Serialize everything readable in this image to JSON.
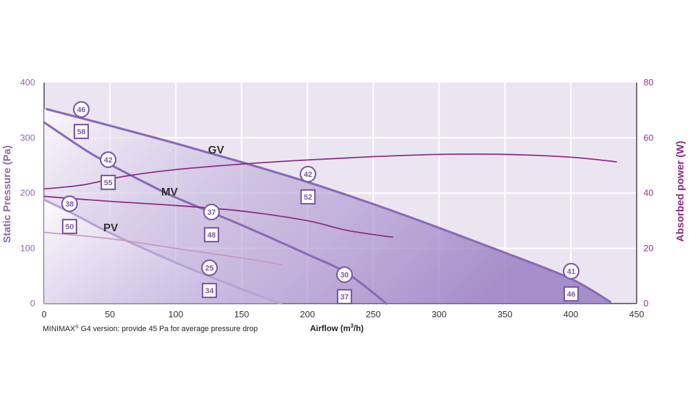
{
  "chart_data": {
    "type": "line",
    "xlabel": "Airflow (m³/h)",
    "ylabel_left": "Static Pressure (Pa)",
    "ylabel_right": "Absorbed power (W)",
    "xlim": [
      0,
      450
    ],
    "ylim_left": [
      0,
      400
    ],
    "ylim_right": [
      0,
      80
    ],
    "x_ticks": [
      "0",
      "50",
      "100",
      "150",
      "200",
      "250",
      "300",
      "350",
      "400",
      "450"
    ],
    "y_left_ticks": [
      "0",
      "100",
      "200",
      "300",
      "400"
    ],
    "y_right_ticks": [
      "0",
      "20",
      "40",
      "60",
      "80"
    ],
    "grid": true,
    "note": "MINIMAX® G4 version: provide 45 Pa for average pressure drop",
    "pressure_series": [
      {
        "name": "GV",
        "points": [
          [
            2,
            352
          ],
          [
            50,
            322
          ],
          [
            100,
            290
          ],
          [
            150,
            256
          ],
          [
            200,
            220
          ],
          [
            250,
            180
          ],
          [
            300,
            137
          ],
          [
            350,
            92
          ],
          [
            400,
            45
          ],
          [
            430,
            3
          ]
        ]
      },
      {
        "name": "MV",
        "points": [
          [
            0,
            328
          ],
          [
            30,
            280
          ],
          [
            50,
            252
          ],
          [
            80,
            215
          ],
          [
            100,
            192
          ],
          [
            150,
            142
          ],
          [
            200,
            89
          ],
          [
            230,
            55
          ],
          [
            260,
            0
          ]
        ]
      },
      {
        "name": "PV",
        "points": [
          [
            0,
            188
          ],
          [
            20,
            165
          ],
          [
            50,
            128
          ],
          [
            80,
            95
          ],
          [
            100,
            74
          ],
          [
            130,
            45
          ],
          [
            160,
            17
          ],
          [
            180,
            0
          ]
        ]
      }
    ],
    "power_series": [
      {
        "name": "GV",
        "points": [
          [
            0,
            41.5
          ],
          [
            30,
            43
          ],
          [
            60,
            46
          ],
          [
            100,
            48.5
          ],
          [
            150,
            50.5
          ],
          [
            200,
            52
          ],
          [
            250,
            53.2
          ],
          [
            300,
            54
          ],
          [
            350,
            54
          ],
          [
            400,
            53
          ],
          [
            435,
            51.3
          ]
        ]
      },
      {
        "name": "MV",
        "points": [
          [
            0,
            38.8
          ],
          [
            50,
            37
          ],
          [
            100,
            35.5
          ],
          [
            150,
            33.5
          ],
          [
            200,
            30
          ],
          [
            230,
            26.5
          ],
          [
            265,
            24
          ]
        ]
      },
      {
        "name": "PV",
        "points": [
          [
            0,
            25.8
          ],
          [
            50,
            23.5
          ],
          [
            100,
            20
          ],
          [
            150,
            16.5
          ],
          [
            181,
            14
          ]
        ]
      }
    ],
    "circle_badges": [
      {
        "x": 28,
        "y": 46,
        "text": "46"
      },
      {
        "x": 48,
        "y": 42,
        "text": "42"
      },
      {
        "x": 20,
        "y": 38,
        "text": "38"
      },
      {
        "x": 127,
        "y": 37,
        "text": "37"
      },
      {
        "x": 126,
        "y": 25,
        "text": "25"
      },
      {
        "x": 200,
        "y": 42,
        "text": "42"
      },
      {
        "x": 228,
        "y": 30,
        "text": "30"
      },
      {
        "x": 400,
        "y": 41,
        "text": "41"
      }
    ],
    "square_badges": [
      {
        "x": 28,
        "y": 58,
        "text": "58"
      },
      {
        "x": 48,
        "y": 55,
        "text": "55"
      },
      {
        "x": 20,
        "y": 50,
        "text": "50"
      },
      {
        "x": 127,
        "y": 48,
        "text": "48"
      },
      {
        "x": 126,
        "y": 34,
        "text": "34"
      },
      {
        "x": 200,
        "y": 52,
        "text": "52"
      },
      {
        "x": 228,
        "y": 37,
        "text": "37"
      },
      {
        "x": 400,
        "y": 46,
        "text": "46"
      }
    ],
    "colors": {
      "plot_bg": "#ebe5f1",
      "grid": "#ffffff",
      "pressure_line": "#8a6ab6",
      "pv_line": "#b6a4d4",
      "power_line": "#8b2a82",
      "pv_power_line": "#c49ac0",
      "fill_dark": "#9e83c5",
      "badge": "#7b5aa6"
    }
  }
}
